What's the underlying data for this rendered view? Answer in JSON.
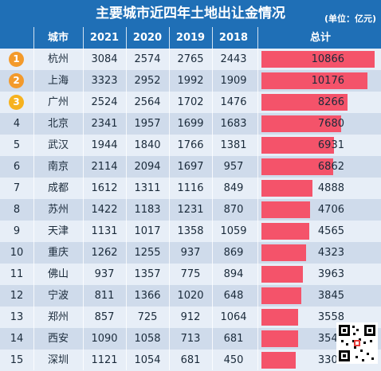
{
  "title": "主要城市近四年土地出让金情况",
  "unit": "(单位：亿元)",
  "headers": {
    "city": "城市",
    "y2021": "2021",
    "y2020": "2020",
    "y2019": "2019",
    "y2018": "2018",
    "total": "总计"
  },
  "colors": {
    "header_bg": "#1f6fb6",
    "bar": "#f4536a",
    "row_light": "#e7eef7",
    "row_dark": "#cfdbeb",
    "badge": "#f39a2b"
  },
  "chart_data": {
    "type": "table",
    "title": "主要城市近四年土地出让金情况",
    "unit": "(单位：亿元)",
    "columns": [
      "城市",
      "2021",
      "2020",
      "2019",
      "2018",
      "总计"
    ],
    "total_max": 10866,
    "rows": [
      {
        "rank": "1",
        "city": "杭州",
        "y2021": "3084",
        "y2020": "2574",
        "y2019": "2765",
        "y2018": "2443",
        "total": 10866
      },
      {
        "rank": "2",
        "city": "上海",
        "y2021": "3323",
        "y2020": "2952",
        "y2019": "1992",
        "y2018": "1909",
        "total": 10176
      },
      {
        "rank": "3",
        "city": "广州",
        "y2021": "2524",
        "y2020": "2564",
        "y2019": "1702",
        "y2018": "1476",
        "total": 8266
      },
      {
        "rank": "4",
        "city": "北京",
        "y2021": "2341",
        "y2020": "1957",
        "y2019": "1699",
        "y2018": "1683",
        "total": 7680
      },
      {
        "rank": "5",
        "city": "武汉",
        "y2021": "1944",
        "y2020": "1840",
        "y2019": "1766",
        "y2018": "1381",
        "total": 6931
      },
      {
        "rank": "6",
        "city": "南京",
        "y2021": "2114",
        "y2020": "2094",
        "y2019": "1697",
        "y2018": "957",
        "total": 6862
      },
      {
        "rank": "7",
        "city": "成都",
        "y2021": "1612",
        "y2020": "1311",
        "y2019": "1116",
        "y2018": "849",
        "total": 4888
      },
      {
        "rank": "8",
        "city": "苏州",
        "y2021": "1422",
        "y2020": "1183",
        "y2019": "1231",
        "y2018": "870",
        "total": 4706
      },
      {
        "rank": "9",
        "city": "天津",
        "y2021": "1131",
        "y2020": "1017",
        "y2019": "1358",
        "y2018": "1059",
        "total": 4565
      },
      {
        "rank": "10",
        "city": "重庆",
        "y2021": "1262",
        "y2020": "1255",
        "y2019": "937",
        "y2018": "869",
        "total": 4323
      },
      {
        "rank": "11",
        "city": "佛山",
        "y2021": "937",
        "y2020": "1357",
        "y2019": "775",
        "y2018": "894",
        "total": 3963
      },
      {
        "rank": "12",
        "city": "宁波",
        "y2021": "811",
        "y2020": "1366",
        "y2019": "1020",
        "y2018": "648",
        "total": 3845
      },
      {
        "rank": "13",
        "city": "郑州",
        "y2021": "857",
        "y2020": "725",
        "y2019": "912",
        "y2018": "1064",
        "total": 3558
      },
      {
        "rank": "14",
        "city": "西安",
        "y2021": "1090",
        "y2020": "1058",
        "y2019": "713",
        "y2018": "681",
        "total": 3542
      },
      {
        "rank": "15",
        "city": "深圳",
        "y2021": "1121",
        "y2020": "1054",
        "y2019": "681",
        "y2018": "450",
        "total": 3306
      }
    ]
  }
}
